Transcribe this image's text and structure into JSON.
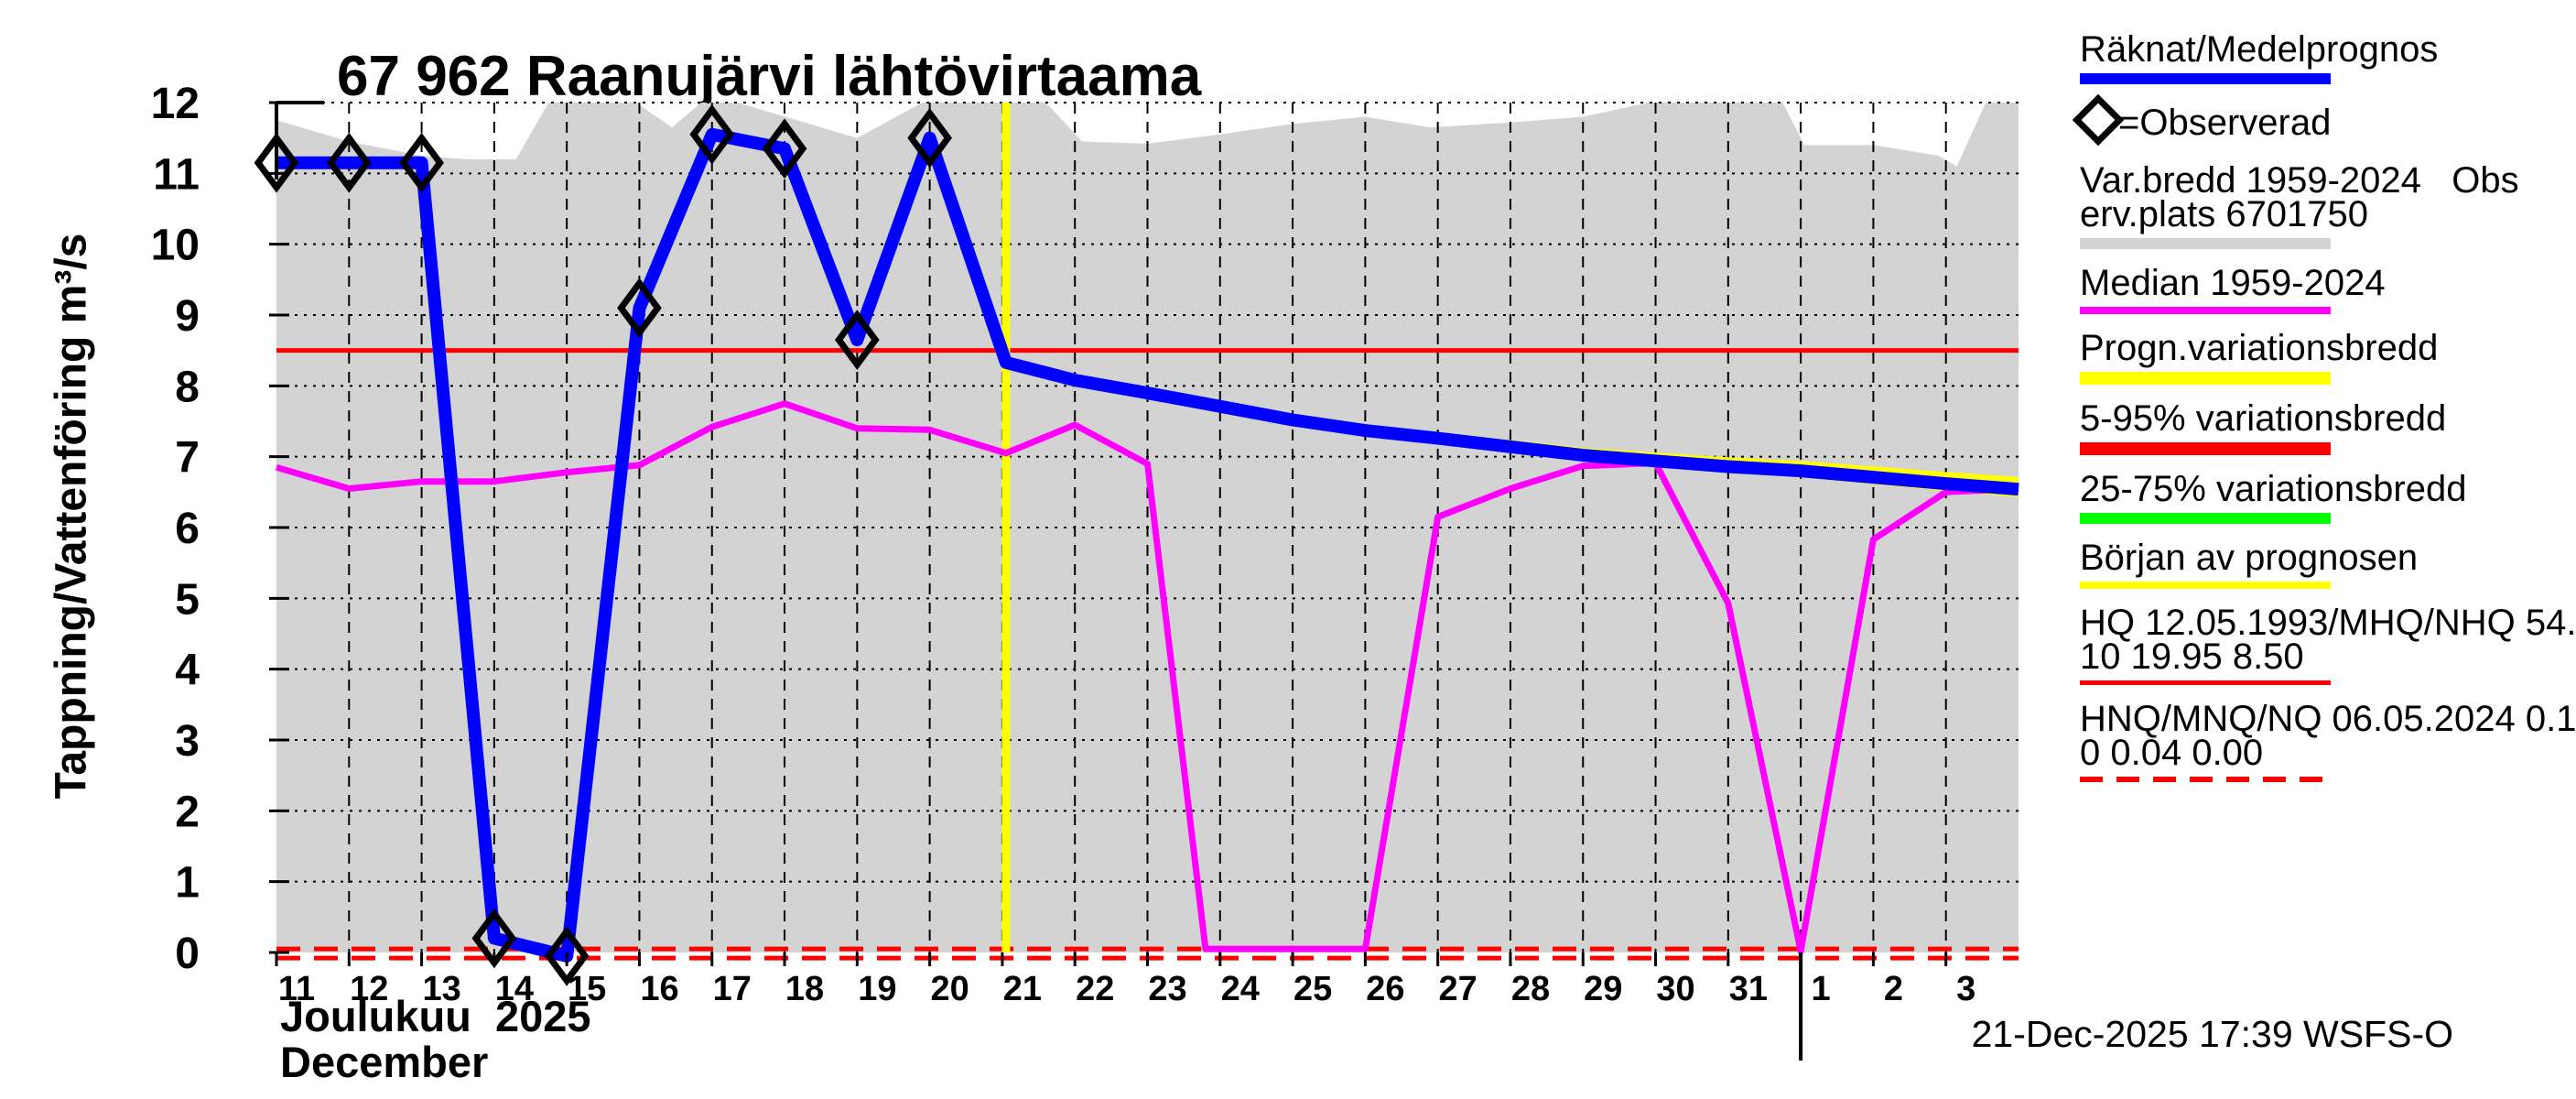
{
  "title": "67 962 Raanujärvi lähtövirtaama",
  "y_axis_title": "Tappning/Vattenföring m³/s",
  "x_axis": {
    "month_label_fi": "Joulukuu  2025",
    "month_label_en": "December",
    "tick_labels": [
      "11",
      "12",
      "13",
      "14",
      "15",
      "16",
      "17",
      "18",
      "19",
      "20",
      "21",
      "22",
      "23",
      "24",
      "25",
      "26",
      "27",
      "28",
      "29",
      "30",
      "31",
      "1",
      "2",
      "3"
    ],
    "tick_days": [
      11,
      12,
      13,
      14,
      15,
      16,
      17,
      18,
      19,
      20,
      21,
      22,
      23,
      24,
      25,
      26,
      27,
      28,
      29,
      30,
      31,
      32,
      33,
      34
    ],
    "month_boundary_day": 32
  },
  "y_axis": {
    "tick_labels": [
      "0",
      "1",
      "2",
      "3",
      "4",
      "5",
      "6",
      "7",
      "8",
      "9",
      "10",
      "11",
      "12"
    ],
    "tick_values": [
      0,
      1,
      2,
      3,
      4,
      5,
      6,
      7,
      8,
      9,
      10,
      11,
      12
    ]
  },
  "footer": "21-Dec-2025 17:39 WSFS-O",
  "colors": {
    "forecast_blue": "#0000ff",
    "median_magenta": "#ff00ff",
    "prognosis_yellow": "#ffff00",
    "range_red": "#ff0000",
    "range_green": "#00ff00",
    "variation_gray": "#d3d3d3",
    "text": "#000000"
  },
  "chart_data": {
    "type": "line",
    "title": "67 962 Raanujärvi lähtövirtaama",
    "ylabel": "Tappning/Vattenföring m³/s",
    "xlabel": "Joulukuu 2025 / December",
    "ylim": [
      0,
      12
    ],
    "xlim_days": [
      11,
      35
    ],
    "grid": true,
    "forecast_start_day": 21.05,
    "series": [
      {
        "name": "Räknat/Medelprognos (observed part, ◇=Observerad)",
        "color": "#0000ff",
        "marker": "diamond",
        "points": [
          [
            11,
            11.15
          ],
          [
            12,
            11.15
          ],
          [
            13,
            11.15
          ],
          [
            14,
            0.2
          ],
          [
            15,
            -0.05
          ],
          [
            16,
            9.1
          ],
          [
            17,
            11.55
          ],
          [
            18,
            11.35
          ],
          [
            19,
            8.65
          ],
          [
            20,
            11.5
          ],
          [
            21.05,
            8.33
          ]
        ],
        "marker_days": [
          11,
          12,
          13,
          14,
          15,
          16,
          17,
          18,
          19,
          20
        ]
      },
      {
        "name": "Räknat/Medelprognos (forecast)",
        "color": "#0000ff",
        "points": [
          [
            21.05,
            8.33
          ],
          [
            22,
            8.08
          ],
          [
            23,
            7.9
          ],
          [
            24,
            7.71
          ],
          [
            25,
            7.52
          ],
          [
            26,
            7.37
          ],
          [
            27,
            7.26
          ],
          [
            28,
            7.14
          ],
          [
            29,
            7.02
          ],
          [
            30,
            6.94
          ],
          [
            31,
            6.86
          ],
          [
            32,
            6.8
          ],
          [
            33,
            6.71
          ],
          [
            34,
            6.62
          ],
          [
            35,
            6.54
          ]
        ]
      },
      {
        "name": "Median 1959-2024",
        "color": "#ff00ff",
        "points": [
          [
            11,
            6.85
          ],
          [
            12,
            6.55
          ],
          [
            13,
            6.65
          ],
          [
            14,
            6.65
          ],
          [
            15,
            6.78
          ],
          [
            16,
            6.88
          ],
          [
            17,
            7.42
          ],
          [
            18,
            7.75
          ],
          [
            19,
            7.4
          ],
          [
            20,
            7.38
          ],
          [
            21.05,
            7.05
          ],
          [
            22,
            7.45
          ],
          [
            23,
            6.9
          ],
          [
            23.8,
            0.05
          ],
          [
            26,
            0.05
          ],
          [
            27,
            6.15
          ],
          [
            28,
            6.55
          ],
          [
            29,
            6.87
          ],
          [
            30,
            6.91
          ],
          [
            31,
            4.93
          ],
          [
            32,
            0.02
          ],
          [
            33,
            5.83
          ],
          [
            34,
            6.5
          ],
          [
            35,
            6.55
          ]
        ]
      },
      {
        "name": "Var.bredd 1959-2024 (top envelope, bottom = 0)",
        "color": "#d3d3d3",
        "points": [
          [
            11,
            11.75
          ],
          [
            12,
            11.45
          ],
          [
            13,
            11.25
          ],
          [
            13.6,
            11.2
          ],
          [
            14.3,
            11.2
          ],
          [
            14.75,
            12
          ],
          [
            15.95,
            12
          ],
          [
            16.45,
            11.65
          ],
          [
            16.85,
            12
          ],
          [
            17.35,
            12
          ],
          [
            19,
            11.5
          ],
          [
            19.9,
            12
          ],
          [
            21.6,
            12
          ],
          [
            22.1,
            11.45
          ],
          [
            23,
            11.42
          ],
          [
            24,
            11.55
          ],
          [
            25,
            11.7
          ],
          [
            26,
            11.8
          ],
          [
            26.9,
            11.65
          ],
          [
            28,
            11.72
          ],
          [
            29,
            11.8
          ],
          [
            29.9,
            12
          ],
          [
            31.75,
            12
          ],
          [
            32.05,
            11.4
          ],
          [
            33,
            11.4
          ],
          [
            33.9,
            11.25
          ],
          [
            34.15,
            11.1
          ],
          [
            34.55,
            12
          ],
          [
            35,
            12
          ]
        ]
      }
    ],
    "reference_lines": {
      "nhq_solid_red": 8.5,
      "hnq_dashed_red": [
        0.05,
        -0.08
      ],
      "forecast_start_yellow_day": 21.05
    }
  },
  "legend": {
    "items": [
      {
        "lines": [
          "Räknat/Medelprognos"
        ],
        "swatch": "bar",
        "color": "#0000ff",
        "height": 12
      },
      {
        "lines": [
          "=Observerad"
        ],
        "marker": "diamond-icon",
        "swatch": "none"
      },
      {
        "lines": [
          "Var.bredd 1959-2024   Obs",
          "erv.plats 6701750"
        ],
        "swatch": "bar",
        "color": "#d3d3d3",
        "height": 12
      },
      {
        "lines": [
          "Median 1959-2024"
        ],
        "swatch": "bar",
        "color": "#ff00ff",
        "height": 8
      },
      {
        "lines": [
          "Progn.variationsbredd"
        ],
        "swatch": "bar",
        "color": "#ffff00",
        "height": 14
      },
      {
        "lines": [
          "5-95% variationsbredd"
        ],
        "swatch": "bar",
        "color": "#ff0000",
        "height": 14
      },
      {
        "lines": [
          "25-75% variationsbredd"
        ],
        "swatch": "bar",
        "color": "#00ff00",
        "height": 12
      },
      {
        "lines": [
          "Början av prognosen"
        ],
        "swatch": "bar",
        "color": "#ffff00",
        "height": 8
      },
      {
        "lines": [
          "HQ 12.05.1993/MHQ/NHQ 54.",
          "10 19.95 8.50"
        ],
        "swatch": "line",
        "color": "#ff0000",
        "height": 5
      },
      {
        "lines": [
          "HNQ/MNQ/NQ 06.05.2024 0.1",
          "0 0.04 0.00"
        ],
        "swatch": "dashed",
        "color": "#ff0000",
        "height": 6
      }
    ]
  }
}
